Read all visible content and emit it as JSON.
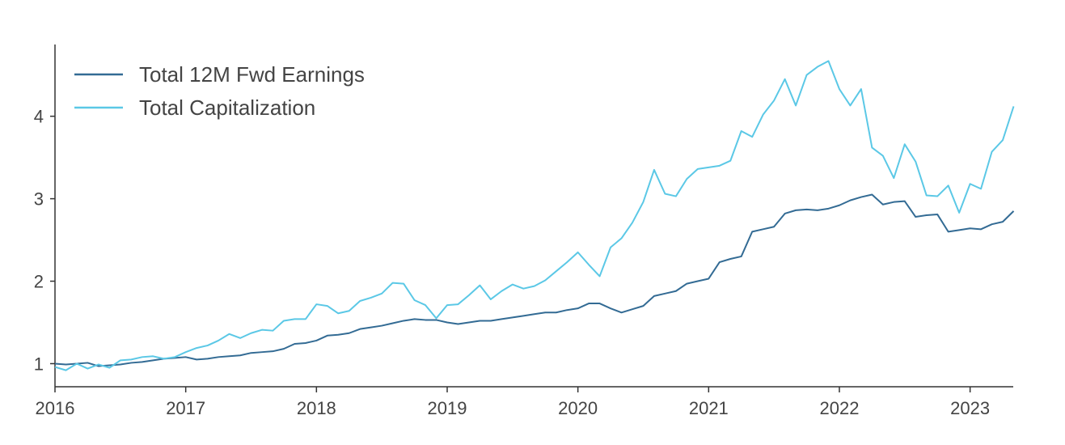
{
  "chart_data": {
    "type": "line",
    "title": "",
    "xlabel": "",
    "ylabel": "",
    "xlim": [
      2016.0,
      2023.33
    ],
    "ylim": [
      0.72,
      4.87
    ],
    "x_ticks": [
      2016,
      2017,
      2018,
      2019,
      2020,
      2021,
      2022,
      2023
    ],
    "x_tick_labels": [
      "2016",
      "2017",
      "2018",
      "2019",
      "2020",
      "2021",
      "2022",
      "2023"
    ],
    "y_ticks": [
      1,
      2,
      3,
      4
    ],
    "y_tick_labels": [
      "1",
      "2",
      "3",
      "4"
    ],
    "grid": false,
    "legend_position": "top-left",
    "x_step": 0.08333,
    "series": [
      {
        "name": "Total 12M Fwd Earnings",
        "color": "#336b94",
        "values": [
          1.0,
          0.99,
          1.0,
          1.01,
          0.97,
          0.98,
          0.99,
          1.01,
          1.02,
          1.04,
          1.06,
          1.07,
          1.08,
          1.05,
          1.06,
          1.08,
          1.09,
          1.1,
          1.13,
          1.14,
          1.15,
          1.18,
          1.24,
          1.25,
          1.28,
          1.34,
          1.35,
          1.37,
          1.42,
          1.44,
          1.46,
          1.49,
          1.52,
          1.54,
          1.53,
          1.53,
          1.5,
          1.48,
          1.5,
          1.52,
          1.52,
          1.54,
          1.56,
          1.58,
          1.6,
          1.62,
          1.62,
          1.65,
          1.67,
          1.73,
          1.73,
          1.67,
          1.62,
          1.66,
          1.7,
          1.82,
          1.85,
          1.88,
          1.97,
          2.0,
          2.03,
          2.23,
          2.27,
          2.3,
          2.6,
          2.63,
          2.66,
          2.82,
          2.86,
          2.87,
          2.86,
          2.88,
          2.92,
          2.98,
          3.02,
          3.05,
          2.93,
          2.96,
          2.97,
          2.78,
          2.8,
          2.81,
          2.6,
          2.62,
          2.64,
          2.63,
          2.69,
          2.72,
          2.85
        ]
      },
      {
        "name": "Total Capitalization",
        "color": "#5bc8e6",
        "values": [
          0.96,
          0.92,
          1.0,
          0.94,
          0.99,
          0.95,
          1.04,
          1.05,
          1.08,
          1.09,
          1.06,
          1.08,
          1.14,
          1.19,
          1.22,
          1.28,
          1.36,
          1.31,
          1.37,
          1.41,
          1.4,
          1.52,
          1.54,
          1.54,
          1.72,
          1.7,
          1.61,
          1.64,
          1.76,
          1.8,
          1.85,
          1.98,
          1.97,
          1.77,
          1.71,
          1.55,
          1.71,
          1.72,
          1.83,
          1.95,
          1.78,
          1.88,
          1.96,
          1.91,
          1.94,
          2.01,
          2.12,
          2.23,
          2.35,
          2.2,
          2.06,
          2.41,
          2.52,
          2.71,
          2.96,
          3.35,
          3.06,
          3.03,
          3.24,
          3.36,
          3.38,
          3.4,
          3.46,
          3.82,
          3.75,
          4.02,
          4.19,
          4.45,
          4.13,
          4.5,
          4.6,
          4.67,
          4.33,
          4.13,
          4.33,
          3.62,
          3.52,
          3.25,
          3.66,
          3.45,
          3.04,
          3.03,
          3.16,
          2.83,
          3.18,
          3.12,
          3.57,
          3.71,
          4.12
        ]
      }
    ]
  }
}
